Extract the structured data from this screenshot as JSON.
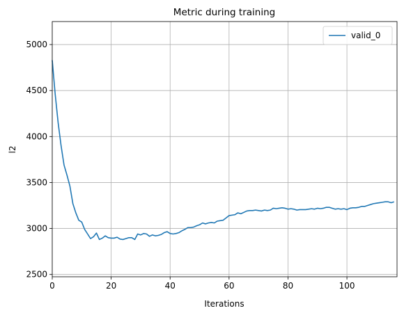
{
  "chart_data": {
    "type": "line",
    "title": "Metric during training",
    "xlabel": "Iterations",
    "ylabel": "l2",
    "xlim": [
      0,
      117
    ],
    "ylim": [
      2475,
      5250
    ],
    "xticks": [
      0,
      20,
      40,
      60,
      80,
      100
    ],
    "yticks": [
      2500,
      3000,
      3500,
      4000,
      4500,
      5000
    ],
    "grid": true,
    "legend_position": "top-right",
    "colors": {
      "series": "#1f77b4",
      "grid": "#b0b0b0",
      "axes": "#000000"
    },
    "series": [
      {
        "name": "valid_0",
        "x": [
          0,
          1,
          2,
          3,
          4,
          5,
          6,
          7,
          8,
          9,
          10,
          11,
          12,
          13,
          14,
          15,
          16,
          17,
          18,
          19,
          20,
          21,
          22,
          23,
          24,
          25,
          26,
          27,
          28,
          29,
          30,
          31,
          32,
          33,
          34,
          35,
          36,
          37,
          38,
          39,
          40,
          41,
          42,
          43,
          44,
          45,
          46,
          47,
          48,
          49,
          50,
          51,
          52,
          53,
          54,
          55,
          56,
          57,
          58,
          59,
          60,
          61,
          62,
          63,
          64,
          65,
          66,
          67,
          68,
          69,
          70,
          71,
          72,
          73,
          74,
          75,
          76,
          77,
          78,
          79,
          80,
          81,
          82,
          83,
          84,
          85,
          86,
          87,
          88,
          89,
          90,
          91,
          92,
          93,
          94,
          95,
          96,
          97,
          98,
          99,
          100,
          101,
          102,
          103,
          104,
          105,
          106,
          107,
          108,
          109,
          110,
          111,
          112,
          113,
          114,
          115,
          116
        ],
        "values": [
          4830,
          4460,
          4150,
          3900,
          3690,
          3580,
          3460,
          3270,
          3170,
          3090,
          3070,
          2990,
          2940,
          2890,
          2910,
          2950,
          2880,
          2895,
          2920,
          2900,
          2895,
          2895,
          2905,
          2885,
          2880,
          2890,
          2900,
          2900,
          2880,
          2940,
          2930,
          2945,
          2940,
          2915,
          2930,
          2920,
          2925,
          2935,
          2955,
          2965,
          2945,
          2940,
          2945,
          2955,
          2975,
          2990,
          3010,
          3010,
          3015,
          3030,
          3040,
          3060,
          3050,
          3060,
          3065,
          3060,
          3080,
          3085,
          3090,
          3115,
          3140,
          3145,
          3150,
          3170,
          3160,
          3175,
          3190,
          3195,
          3195,
          3200,
          3195,
          3190,
          3200,
          3195,
          3200,
          3220,
          3215,
          3220,
          3225,
          3220,
          3210,
          3215,
          3210,
          3200,
          3205,
          3205,
          3205,
          3210,
          3215,
          3210,
          3220,
          3215,
          3220,
          3230,
          3230,
          3220,
          3210,
          3215,
          3210,
          3215,
          3205,
          3220,
          3225,
          3225,
          3230,
          3240,
          3240,
          3250,
          3260,
          3270,
          3275,
          3280,
          3285,
          3290,
          3290,
          3280,
          3290
        ]
      }
    ]
  }
}
